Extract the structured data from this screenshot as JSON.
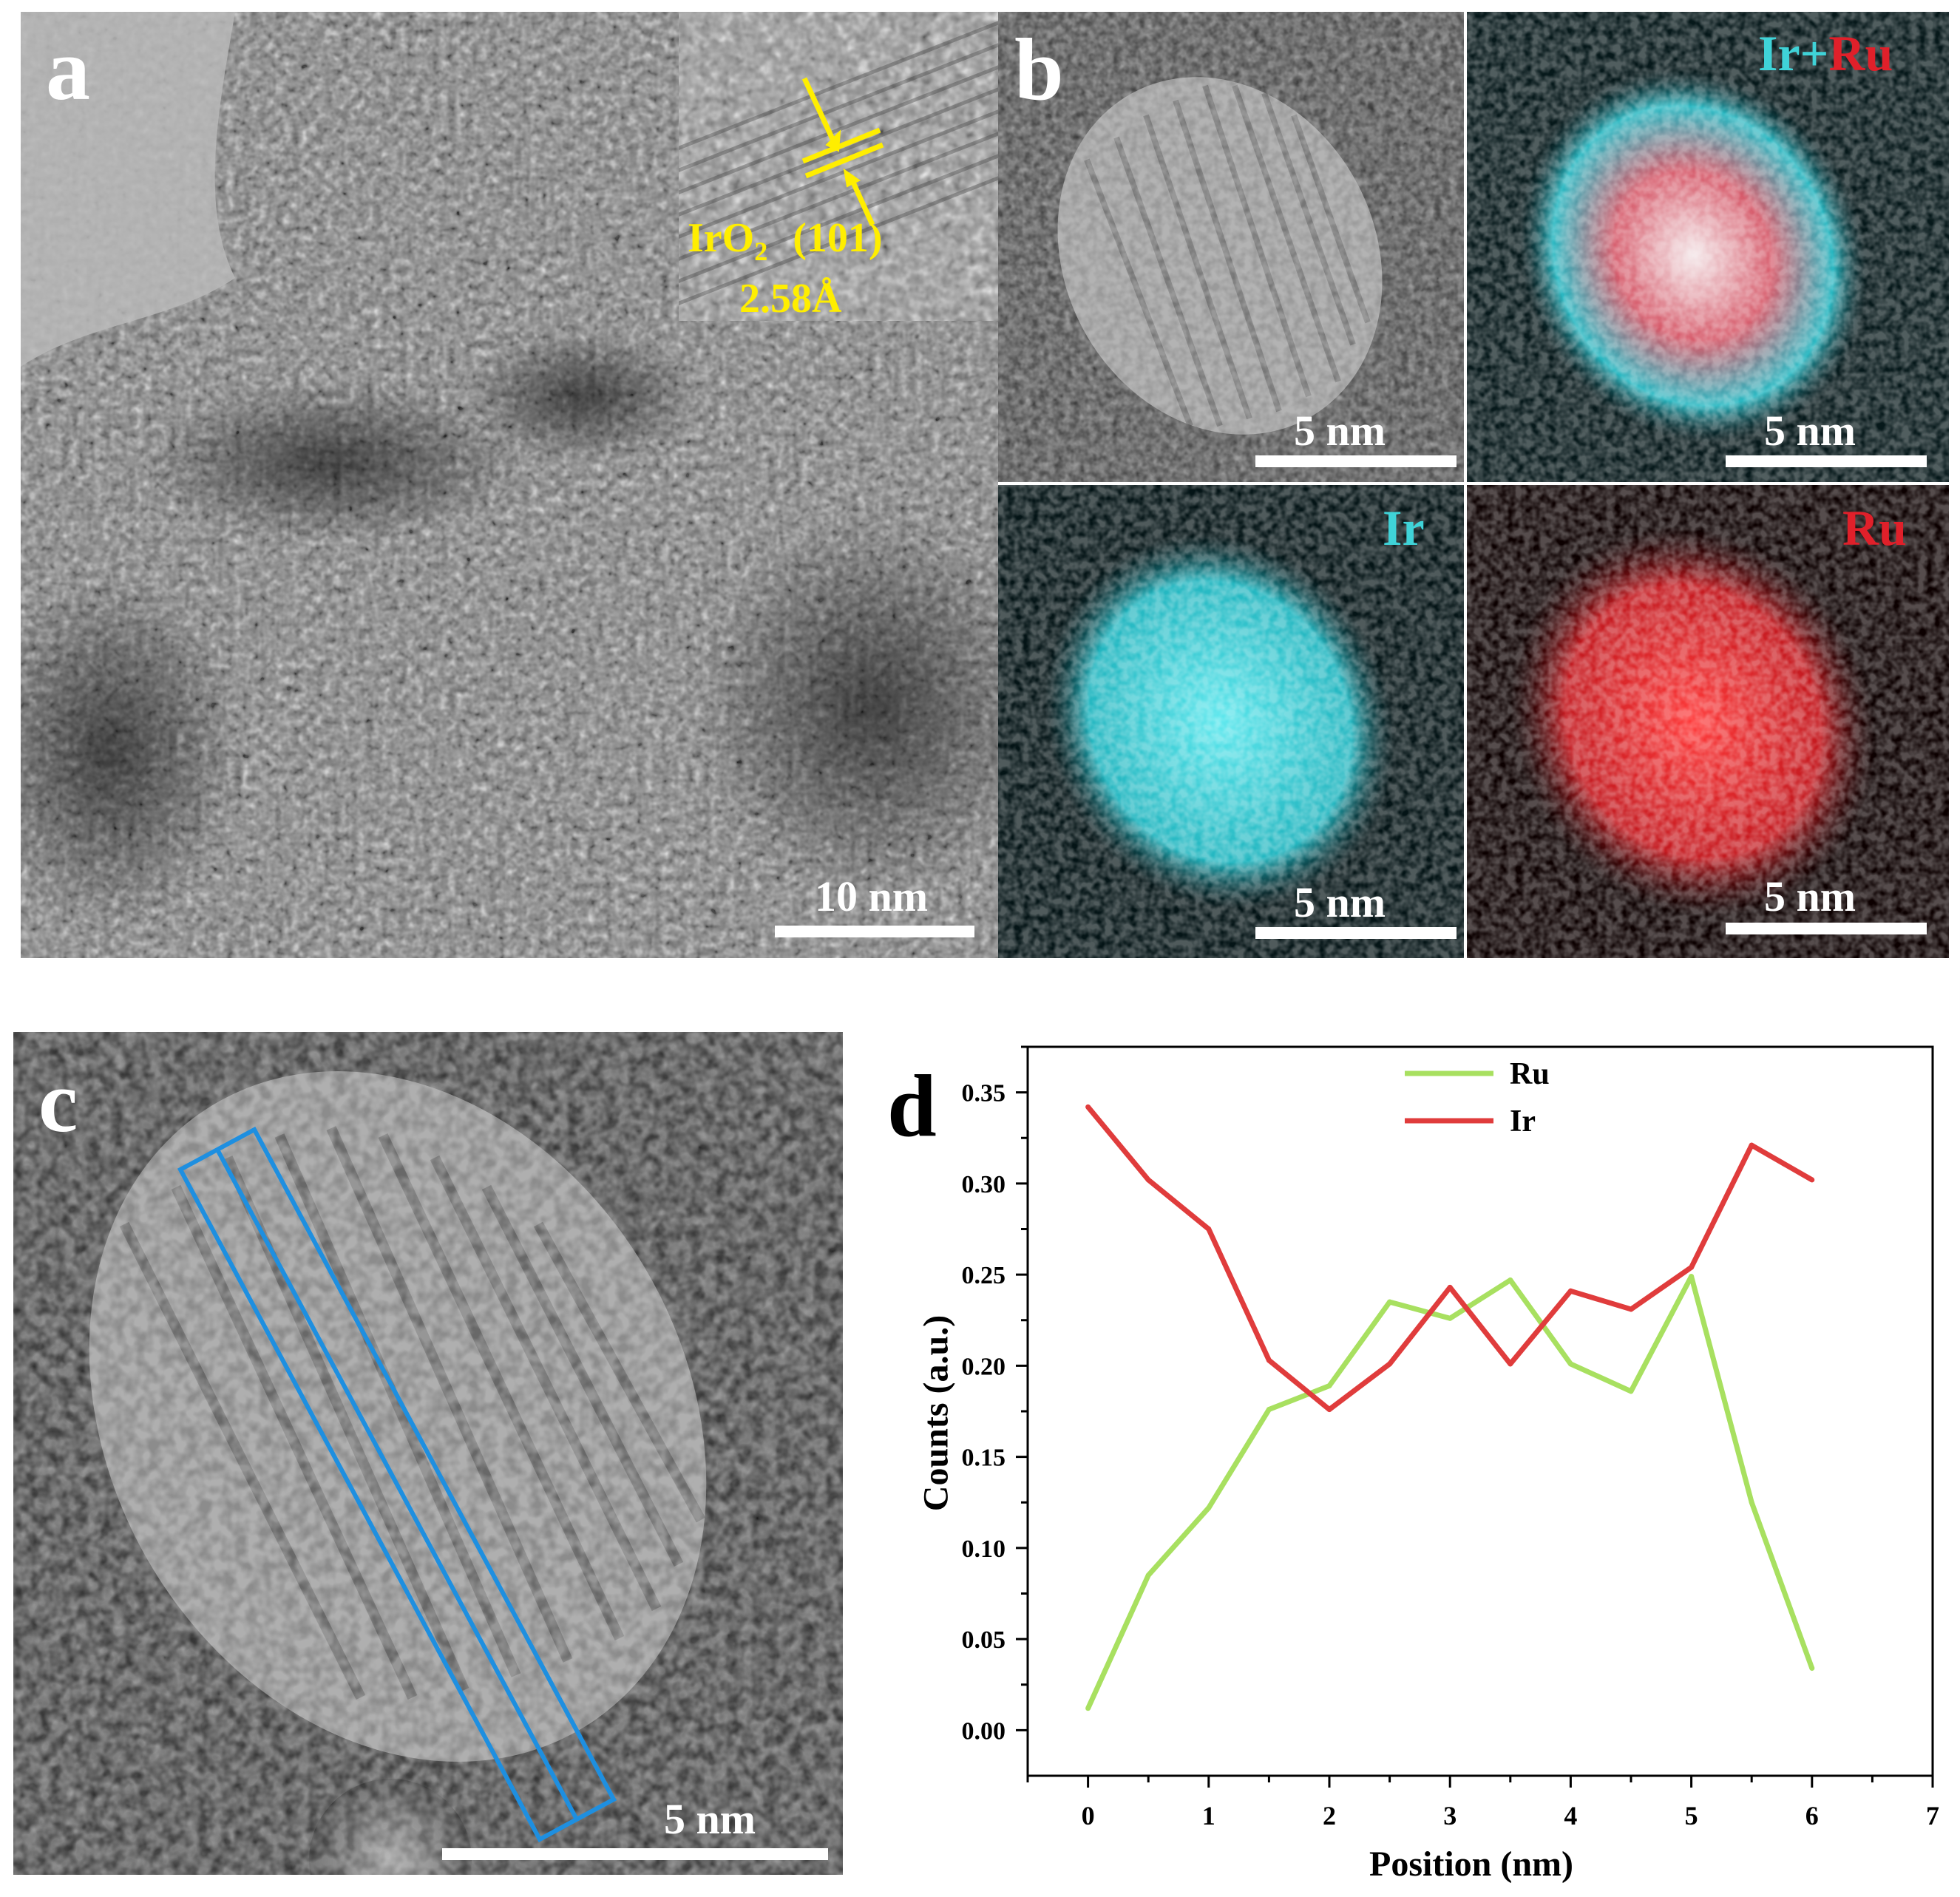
{
  "panel_a": {
    "letter": "a",
    "scale_bar": "10 nm",
    "inset_phase": "IrO",
    "inset_subscript": "2",
    "inset_plane": "(101)",
    "inset_spacing": "2.58Å"
  },
  "panel_b": {
    "letter": "b",
    "map_labels": {
      "overlay_ir": "Ir",
      "overlay_plus": "+",
      "overlay_ru": "Ru",
      "ir": "Ir",
      "ru": "Ru"
    },
    "scale_bars": [
      "5 nm",
      "5 nm",
      "5 nm",
      "5 nm"
    ],
    "colors": {
      "ir": "#3fd3d8",
      "ru": "#e0202a"
    }
  },
  "panel_c": {
    "letter": "c",
    "scale_bar": "5 nm",
    "line_scan_box_color": "#1e8fe0"
  },
  "panel_d": {
    "letter": "d",
    "chart_data": {
      "type": "line",
      "xlabel": "Position (nm)",
      "ylabel": "Counts (a.u.)",
      "xlim": [
        -0.5,
        7
      ],
      "ylim": [
        -0.025,
        0.375
      ],
      "xticks": [
        0,
        1,
        2,
        3,
        4,
        5,
        6,
        7
      ],
      "xtick_labels": [
        "0",
        "1",
        "2",
        "3",
        "4",
        "5",
        "6",
        "7"
      ],
      "yticks": [
        0.0,
        0.05,
        0.1,
        0.15,
        0.2,
        0.25,
        0.3,
        0.35
      ],
      "ytick_labels": [
        "0.00",
        "0.05",
        "0.10",
        "0.15",
        "0.20",
        "0.25",
        "0.30",
        "0.35"
      ],
      "legend_position": "top-center",
      "series": [
        {
          "name": "Ru",
          "color": "#a8e060",
          "x": [
            0,
            0.5,
            1,
            1.5,
            2,
            2.5,
            3,
            3.5,
            4,
            4.5,
            5,
            5.5,
            6
          ],
          "values": [
            0.012,
            0.085,
            0.122,
            0.176,
            0.189,
            0.235,
            0.226,
            0.247,
            0.201,
            0.186,
            0.249,
            0.125,
            0.034
          ]
        },
        {
          "name": "Ir",
          "color": "#e03c3c",
          "x": [
            0,
            0.5,
            1,
            1.5,
            2,
            2.5,
            3,
            3.5,
            4,
            4.5,
            5,
            5.5,
            6
          ],
          "values": [
            0.342,
            0.302,
            0.275,
            0.203,
            0.176,
            0.201,
            0.243,
            0.201,
            0.241,
            0.231,
            0.254,
            0.321,
            0.302
          ]
        }
      ]
    }
  }
}
